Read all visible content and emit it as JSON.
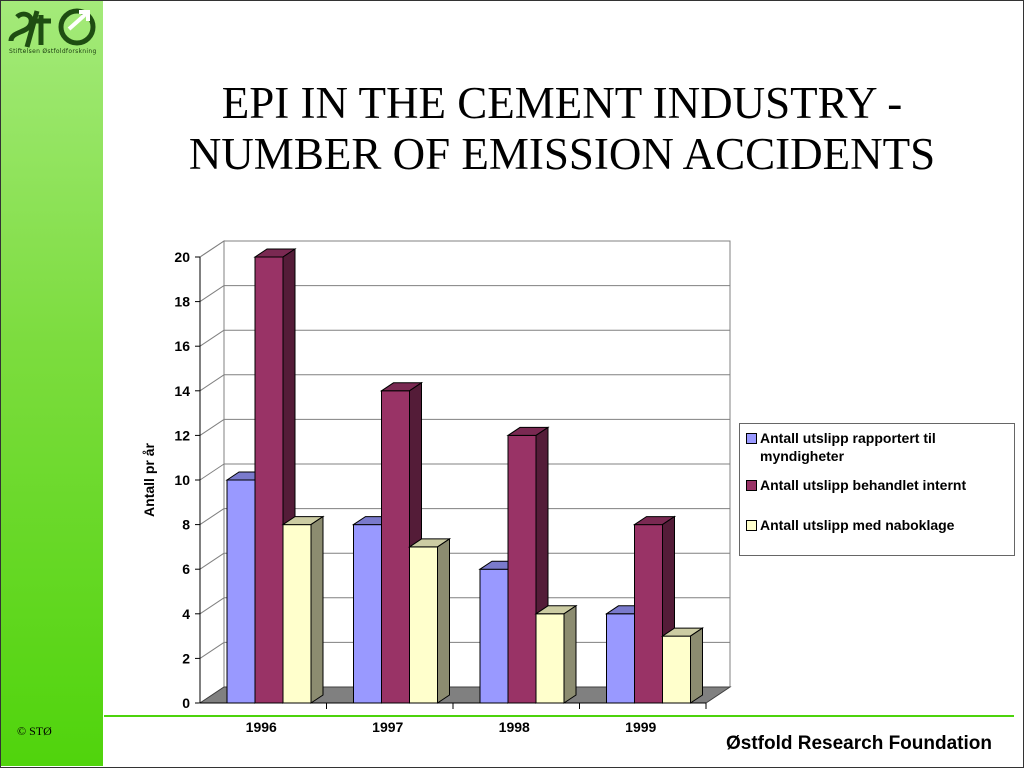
{
  "header": {
    "logo_text": "STØ",
    "logo_subtitle": "Stiftelsen Østfoldforskning",
    "title_line1": "EPI IN THE CEMENT INDUSTRY -",
    "title_line2": "NUMBER OF EMISSION ACCIDENTS"
  },
  "footer": {
    "copyright": "© STØ",
    "organization": "Østfold Research Foundation"
  },
  "colors": {
    "sidebar_green": "#50d40c",
    "series1": "#9999ff",
    "series2": "#993366",
    "series3": "#ffffcc",
    "rule_green": "#4cd40c"
  },
  "chart_data": {
    "type": "bar",
    "style": "3d-clustered-column",
    "title": "",
    "xlabel": "",
    "ylabel": "Antall pr år",
    "categories": [
      "1996",
      "1997",
      "1998",
      "1999"
    ],
    "series": [
      {
        "name": "Antall utslipp rapportert til myndigheter",
        "values": [
          10,
          8,
          6,
          4
        ],
        "color": "#9999ff"
      },
      {
        "name": "Antall utslipp behandlet internt",
        "values": [
          20,
          14,
          12,
          8
        ],
        "color": "#993366"
      },
      {
        "name": "Antall utslipp med naboklage",
        "values": [
          8,
          7,
          4,
          3
        ],
        "color": "#ffffcc"
      }
    ],
    "ylim": [
      0,
      20
    ],
    "yticks": [
      "0",
      "2",
      "4",
      "6",
      "8",
      "10",
      "12",
      "14",
      "16",
      "18",
      "20"
    ],
    "grid": true,
    "legend_position": "right"
  }
}
